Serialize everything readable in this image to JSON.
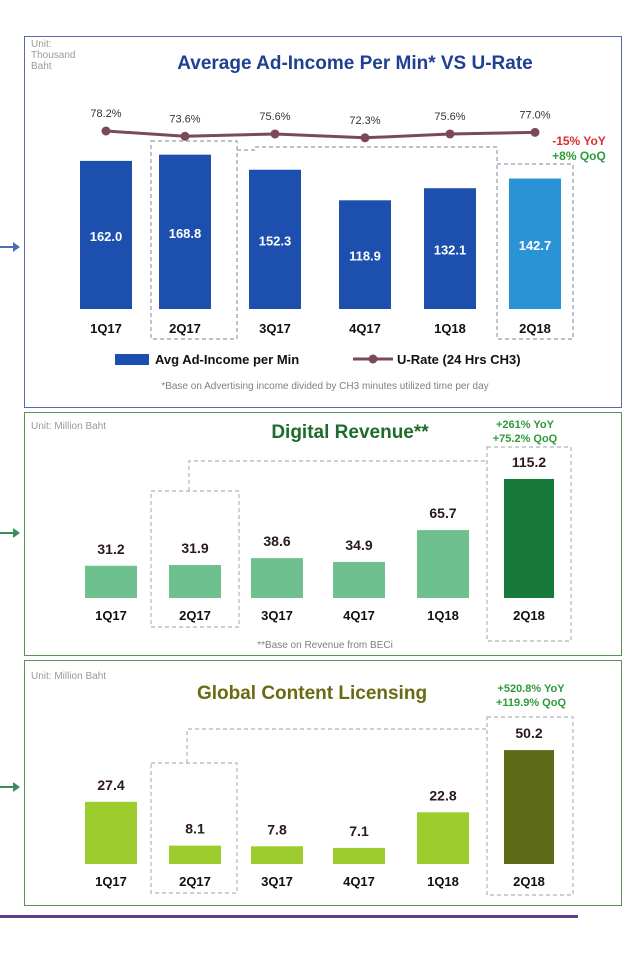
{
  "panels": {
    "ad_income": {
      "unit": "Unit:\nThousand\nBaht",
      "title": "Average Ad-Income Per Min* VS U-Rate",
      "yoy": "-15% YoY",
      "qoq": "+8% QoQ",
      "legend_bar": "Avg Ad-Income per Min",
      "legend_line": "U-Rate (24 Hrs CH3)",
      "footnote": "*Base on Advertising income divided by CH3 minutes utilized time per day"
    },
    "digital": {
      "unit": "Unit: Million Baht",
      "title": "Digital Revenue**",
      "yoy": "+261% YoY",
      "qoq": "+75.2% QoQ",
      "footnote": "**Base on Revenue from BECi"
    },
    "licensing": {
      "unit": "Unit: Million Baht",
      "title": "Global Content Licensing",
      "yoy": "+520.8% YoY",
      "qoq": "+119.9% QoQ"
    }
  },
  "colors": {
    "ad_bar": "#1c4fae",
    "ad_bar_highlight": "#2a93d6",
    "u_rate_line": "#7a4a5c",
    "digital_bar": "#6fc08f",
    "digital_bar_highlight": "#177a3a",
    "licensing_bar": "#9ccc2e",
    "licensing_bar_highlight": "#5d6a16",
    "title_blue": "#1f3f93",
    "title_green": "#1d6b2d",
    "title_olive": "#6b6a12",
    "red": "#d6312a",
    "green": "#2f9a3a"
  },
  "chart_data": [
    {
      "type": "bar",
      "title": "Average Ad-Income Per Min* VS U-Rate",
      "categories": [
        "1Q17",
        "2Q17",
        "3Q17",
        "4Q17",
        "1Q18",
        "2Q18"
      ],
      "series": [
        {
          "name": "Avg Ad-Income per Min",
          "values": [
            162.0,
            168.8,
            152.3,
            118.9,
            132.1,
            142.7
          ],
          "labels": [
            "162.0",
            "168.8",
            "152.3",
            "118.9",
            "132.1",
            "142.7"
          ]
        },
        {
          "name": "U-Rate (24 Hrs CH3)",
          "type": "line",
          "values": [
            78.2,
            73.6,
            75.6,
            72.3,
            75.6,
            77.0
          ],
          "labels": [
            "78.2%",
            "73.6%",
            "75.6%",
            "72.3%",
            "75.6%",
            "77.0%"
          ]
        }
      ],
      "ylim": [
        0,
        175
      ],
      "legend": "bottom"
    },
    {
      "type": "bar",
      "title": "Digital Revenue**",
      "categories": [
        "1Q17",
        "2Q17",
        "3Q17",
        "4Q17",
        "1Q18",
        "2Q18"
      ],
      "values": [
        31.2,
        31.9,
        38.6,
        34.9,
        65.7,
        115.2
      ],
      "labels": [
        "31.2",
        "31.9",
        "38.6",
        "34.9",
        "65.7",
        "115.2"
      ],
      "ylim": [
        0,
        120
      ]
    },
    {
      "type": "bar",
      "title": "Global Content Licensing",
      "categories": [
        "1Q17",
        "2Q17",
        "3Q17",
        "4Q17",
        "1Q18",
        "2Q18"
      ],
      "values": [
        27.4,
        8.1,
        7.8,
        7.1,
        22.8,
        50.2
      ],
      "labels": [
        "27.4",
        "8.1",
        "7.8",
        "7.1",
        "22.8",
        "50.2"
      ],
      "ylim": [
        0,
        52
      ]
    }
  ]
}
